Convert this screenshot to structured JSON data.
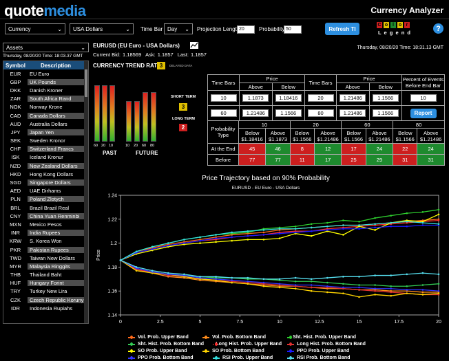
{
  "header": {
    "logo_prefix": "quote",
    "logo_suffix": "media",
    "app_title": "Currency Analyzer"
  },
  "toolbar": {
    "category_select": "Currency",
    "currency_select": "USA Dollars",
    "time_bar_label": "Time Bar",
    "time_bar_select": "Day",
    "projection_label": "Projection Length",
    "projection_value": "20",
    "probability_label": "Probability",
    "probability_value": "50",
    "refresh_button": "Refresh TI",
    "color_letters": [
      "C",
      "o",
      "l",
      "o",
      "r"
    ],
    "legend_word": "L e g e n d",
    "help_icon": "?"
  },
  "sidebar": {
    "filter_select": "Assets",
    "timestamp": "Thursday, 08/20/20 Time: 18:03.37 GMT",
    "col_symbol": "Symbol",
    "col_description": "Description",
    "rows": [
      {
        "sym": "EUR",
        "desc": "EU Euro"
      },
      {
        "sym": "GBP",
        "desc": "UK Pounds"
      },
      {
        "sym": "DKK",
        "desc": "Danish Kroner"
      },
      {
        "sym": "ZAR",
        "desc": "South Africa Rand"
      },
      {
        "sym": "NOK",
        "desc": "Norway Krone"
      },
      {
        "sym": "CAD",
        "desc": "Canada Dollars"
      },
      {
        "sym": "AUD",
        "desc": "Australia Dollars"
      },
      {
        "sym": "JPY",
        "desc": "Japan Yen"
      },
      {
        "sym": "SEK",
        "desc": "Sweden Kronor"
      },
      {
        "sym": "CHF",
        "desc": "Switzerland Francs"
      },
      {
        "sym": "ISK",
        "desc": "Iceland Kronur"
      },
      {
        "sym": "NZD",
        "desc": "New Zealand Dollars"
      },
      {
        "sym": "HKD",
        "desc": "Hong Kong Dollars"
      },
      {
        "sym": "SGD",
        "desc": "Singapore Dollars"
      },
      {
        "sym": "AED",
        "desc": "UAE Dirhams"
      },
      {
        "sym": "PLN",
        "desc": "Poland Zlotych"
      },
      {
        "sym": "BRL",
        "desc": "Brazil Brazil Real"
      },
      {
        "sym": "CNY",
        "desc": "China Yuan Renminbi"
      },
      {
        "sym": "MXN",
        "desc": "Mexico Pesos"
      },
      {
        "sym": "INR",
        "desc": "India Rupees"
      },
      {
        "sym": "KRW",
        "desc": "S. Korea Won"
      },
      {
        "sym": "PKR",
        "desc": "Pakistan Rupees"
      },
      {
        "sym": "TWD",
        "desc": "Taiwan New Dollars"
      },
      {
        "sym": "MYR",
        "desc": "Malaysia Ringgits"
      },
      {
        "sym": "THB",
        "desc": "Thailand Baht"
      },
      {
        "sym": "HUF",
        "desc": "Hungary Forint"
      },
      {
        "sym": "TRY",
        "desc": "Turkey New Lira"
      },
      {
        "sym": "CZK",
        "desc": "Czech Republic Koruny"
      },
      {
        "sym": "IDR",
        "desc": "Indonesia Rupiahs"
      }
    ]
  },
  "quote": {
    "pair_title": "EURUSD (EU Euro - USA Dollars)",
    "timestamp": "Thursday, 08/20/20 Time: 18:31.13 GMT",
    "current_bid_label": "Current Bid:",
    "current_bid": "1.18569",
    "ask_label": "Ask:",
    "ask": "1.1857",
    "last_label": "Last:",
    "last": "1.1857"
  },
  "trend": {
    "title": "CURRENCY TREND RATE",
    "rating": "3",
    "delayed": "DELAYED DATA",
    "short_term_label": "SHORT TERM",
    "short_term_value": "3",
    "long_term_label": "LONG TERM",
    "long_term_value": "2",
    "past_label": "PAST",
    "future_label": "FUTURE",
    "past_ticks": [
      "60",
      "20",
      "10"
    ],
    "future_ticks": [
      "10",
      "20",
      "60",
      "80"
    ],
    "past_levels": [
      1.0,
      1.0,
      1.0
    ],
    "future_levels": [
      0.72,
      0.72,
      0.88,
      0.88
    ]
  },
  "price_table": {
    "h_timebars": "Time Bars",
    "h_price": "Price",
    "h_above": "Above",
    "h_below": "Below",
    "h_percent": "Percent of Events Before End Bar",
    "rows": [
      {
        "left_bars": "10",
        "left_above": "1.1873",
        "left_below": "1.18416",
        "right_bars": "20",
        "right_above": "1.21486",
        "right_below": "1.1566",
        "percent": "10"
      },
      {
        "left_bars": "60",
        "left_above": "1.21486",
        "left_below": "1.1566",
        "right_bars": "80",
        "right_above": "1.21486",
        "right_below": "1.1566",
        "report": "Report"
      }
    ]
  },
  "prob_table": {
    "h_type": "Probability Type",
    "groups": [
      "10",
      "20",
      "60",
      "80"
    ],
    "subheads": [
      "Below $1.18416",
      "Above $1.1873",
      "Below $1.1566",
      "Above $1.21486",
      "Below $1.1566",
      "Above $1.21486",
      "Below $1.1566",
      "Above $1.21486"
    ],
    "rows": [
      {
        "label": "At the End",
        "values": [
          "45",
          "46",
          "8",
          "12",
          "17",
          "24",
          "22",
          "24"
        ]
      },
      {
        "label": "Before",
        "values": [
          "77",
          "77",
          "11",
          "17",
          "25",
          "29",
          "31",
          "31"
        ]
      }
    ],
    "colors": [
      "red",
      "grn",
      "red",
      "grn",
      "red",
      "grn",
      "red",
      "grn"
    ]
  },
  "chart_data": {
    "type": "line",
    "title": "Price Trajectory based on 90% Probability",
    "subtitle": "EURUSD - EU Euro - USA Dollars",
    "ylabel": "Price",
    "xlim": [
      0,
      20
    ],
    "ylim": [
      1.14,
      1.24
    ],
    "xticks": [
      "0",
      "2.5",
      "5",
      "7.5",
      "10",
      "12.5",
      "15",
      "17.5",
      "20"
    ],
    "yticks": [
      "1.14",
      "1.16",
      "1.18",
      "1.2",
      "1.22",
      "1.24"
    ],
    "x": [
      0,
      1,
      2,
      3,
      4,
      5,
      6,
      7,
      8,
      9,
      10,
      11,
      12,
      13,
      14,
      15,
      16,
      17,
      18,
      19,
      20
    ],
    "series": [
      {
        "name": "Vol. Prob. Upper Band",
        "color": "#ff6a1a",
        "values": [
          1.1857,
          1.193,
          1.196,
          1.199,
          1.201,
          1.203,
          1.205,
          1.207,
          1.208,
          1.209,
          1.211,
          1.212,
          1.213,
          1.214,
          1.215,
          1.215,
          1.216,
          1.217,
          1.218,
          1.219,
          1.22
        ]
      },
      {
        "name": "Vol. Prob. Bottom Band",
        "color": "#ff8c1a",
        "values": [
          1.1857,
          1.178,
          1.175,
          1.172,
          1.171,
          1.169,
          1.168,
          1.167,
          1.166,
          1.165,
          1.164,
          1.164,
          1.163,
          1.162,
          1.162,
          1.161,
          1.161,
          1.16,
          1.16,
          1.159,
          1.159
        ]
      },
      {
        "name": "Sht. Hist. Prob. Upper Band",
        "color": "#2ecc2e",
        "values": [
          1.1857,
          1.193,
          1.197,
          1.2,
          1.203,
          1.205,
          1.207,
          1.208,
          1.209,
          1.212,
          1.213,
          1.214,
          1.216,
          1.217,
          1.219,
          1.218,
          1.221,
          1.223,
          1.225,
          1.226,
          1.228
        ]
      },
      {
        "name": "Sht. Hist. Prob. Bottom Band",
        "color": "#33cc55",
        "values": [
          1.1857,
          1.179,
          1.176,
          1.174,
          1.173,
          1.172,
          1.171,
          1.171,
          1.17,
          1.17,
          1.169,
          1.168,
          1.168,
          1.167,
          1.166,
          1.165,
          1.165,
          1.164,
          1.164,
          1.165,
          1.166
        ]
      },
      {
        "name": "Long Hist. Prob. Upper Band",
        "color": "#ff3030",
        "values": [
          1.1857,
          1.192,
          1.195,
          1.198,
          1.2,
          1.202,
          1.203,
          1.205,
          1.206,
          1.207,
          1.209,
          1.21,
          1.21,
          1.212,
          1.213,
          1.214,
          1.215,
          1.216,
          1.217,
          1.218,
          1.219
        ]
      },
      {
        "name": "Long Hist. Prob. Bottom Band",
        "color": "#e03030",
        "values": [
          1.1857,
          1.178,
          1.176,
          1.173,
          1.172,
          1.17,
          1.169,
          1.168,
          1.167,
          1.166,
          1.165,
          1.164,
          1.163,
          1.163,
          1.162,
          1.161,
          1.16,
          1.159,
          1.158,
          1.157,
          1.157
        ]
      },
      {
        "name": "SO Prob. Upper Band",
        "color": "#ffff00",
        "values": [
          1.1857,
          1.191,
          1.194,
          1.197,
          1.199,
          1.2,
          1.201,
          1.202,
          1.203,
          1.203,
          1.204,
          1.208,
          1.206,
          1.21,
          1.207,
          1.214,
          1.211,
          1.217,
          1.219,
          1.218,
          1.224
        ]
      },
      {
        "name": "SO Prob. Bottom Band",
        "color": "#ffd400",
        "values": [
          1.1857,
          1.177,
          1.175,
          1.174,
          1.172,
          1.17,
          1.169,
          1.167,
          1.166,
          1.164,
          1.163,
          1.162,
          1.16,
          1.159,
          1.158,
          1.155,
          1.157,
          1.156,
          1.158,
          1.157,
          1.158
        ]
      },
      {
        "name": "PPO Prob. Upper Band",
        "color": "#1a1aff",
        "values": [
          1.1857,
          1.192,
          1.195,
          1.198,
          1.2,
          1.202,
          1.204,
          1.205,
          1.206,
          1.207,
          1.208,
          1.209,
          1.21,
          1.211,
          1.212,
          1.212,
          1.213,
          1.214,
          1.214,
          1.215,
          1.215
        ]
      },
      {
        "name": "PPO Prob. Bottom Band",
        "color": "#3333ff",
        "values": [
          1.1857,
          1.179,
          1.176,
          1.174,
          1.173,
          1.171,
          1.17,
          1.169,
          1.168,
          1.167,
          1.166,
          1.165,
          1.165,
          1.164,
          1.163,
          1.163,
          1.162,
          1.162,
          1.161,
          1.161,
          1.16
        ]
      },
      {
        "name": "RSI Prob. Upper Band",
        "color": "#33e0e0",
        "values": [
          1.1857,
          1.193,
          1.197,
          1.2,
          1.203,
          1.205,
          1.207,
          1.209,
          1.21,
          1.211,
          1.212,
          1.212,
          1.213,
          1.214,
          1.215,
          1.215,
          1.216,
          1.217,
          1.218,
          1.217,
          1.216
        ]
      },
      {
        "name": "RSI Prob. Bottom Band",
        "color": "#55ddee",
        "values": [
          1.1857,
          1.18,
          1.177,
          1.175,
          1.174,
          1.172,
          1.172,
          1.171,
          1.171,
          1.17,
          1.17,
          1.171,
          1.17,
          1.171,
          1.172,
          1.172,
          1.173,
          1.173,
          1.174,
          1.175,
          1.174
        ]
      }
    ]
  }
}
